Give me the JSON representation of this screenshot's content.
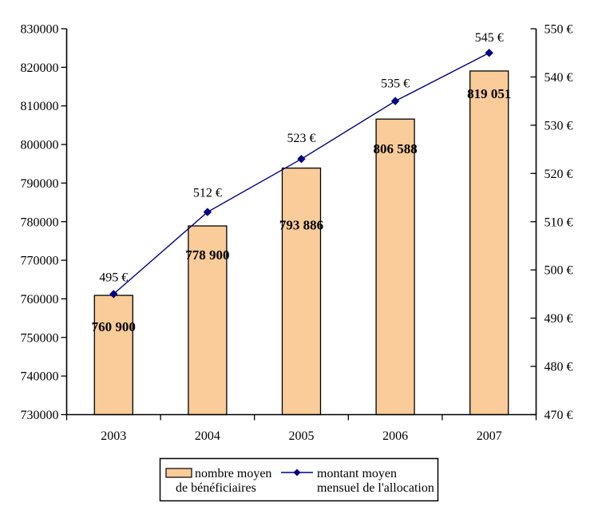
{
  "chart_data": {
    "type": "bar",
    "title": "",
    "categories": [
      "2003",
      "2004",
      "2005",
      "2006",
      "2007"
    ],
    "series": [
      {
        "name": "nombre moyen de bénéficiaires",
        "type": "bar",
        "axis": "left",
        "values": [
          760900,
          778900,
          793886,
          806588,
          819051
        ],
        "labels": [
          "760 900",
          "778 900",
          "793 886",
          "806 588",
          "819 051"
        ],
        "label_dy": [
          45,
          42,
          77,
          43,
          34
        ],
        "fill": "#FACC99",
        "stroke": "#000000"
      },
      {
        "name": "montant moyen mensuel de l'allocation",
        "type": "line",
        "axis": "right",
        "values": [
          495,
          512,
          523,
          535,
          545
        ],
        "labels": [
          "495 €",
          "512 €",
          "523 €",
          "535 €",
          "545 €"
        ],
        "label_dy": [
          -16,
          -19,
          -21,
          -17,
          -14
        ],
        "color": "#000080",
        "marker": "diamond"
      }
    ],
    "left_axis": {
      "min": 730000,
      "max": 830000,
      "step": 10000,
      "tick_labels": [
        "830000",
        "820000",
        "810000",
        "800000",
        "790000",
        "780000",
        "770000",
        "760000",
        "750000",
        "740000",
        "730000"
      ]
    },
    "right_axis": {
      "min": 470,
      "max": 550,
      "step": 10,
      "tick_labels": [
        "550 €",
        "540 €",
        "530 €",
        "520 €",
        "510 €",
        "500 €",
        "490 €",
        "480 €",
        "470 €"
      ]
    },
    "grid": false,
    "legend": {
      "position": "bottom",
      "entries": [
        {
          "swatch": "bar",
          "lines": [
            "nombre moyen",
            "de bénéficiaires"
          ]
        },
        {
          "swatch": "line",
          "lines": [
            "montant moyen",
            "mensuel de l'allocation"
          ]
        }
      ]
    },
    "colors": {
      "background": "#FFFFFF",
      "bar_fill": "#FACC99",
      "bar_border": "#000000",
      "line": "#000080",
      "marker": "#000080",
      "axis": "#000000",
      "text": "#000000"
    }
  }
}
